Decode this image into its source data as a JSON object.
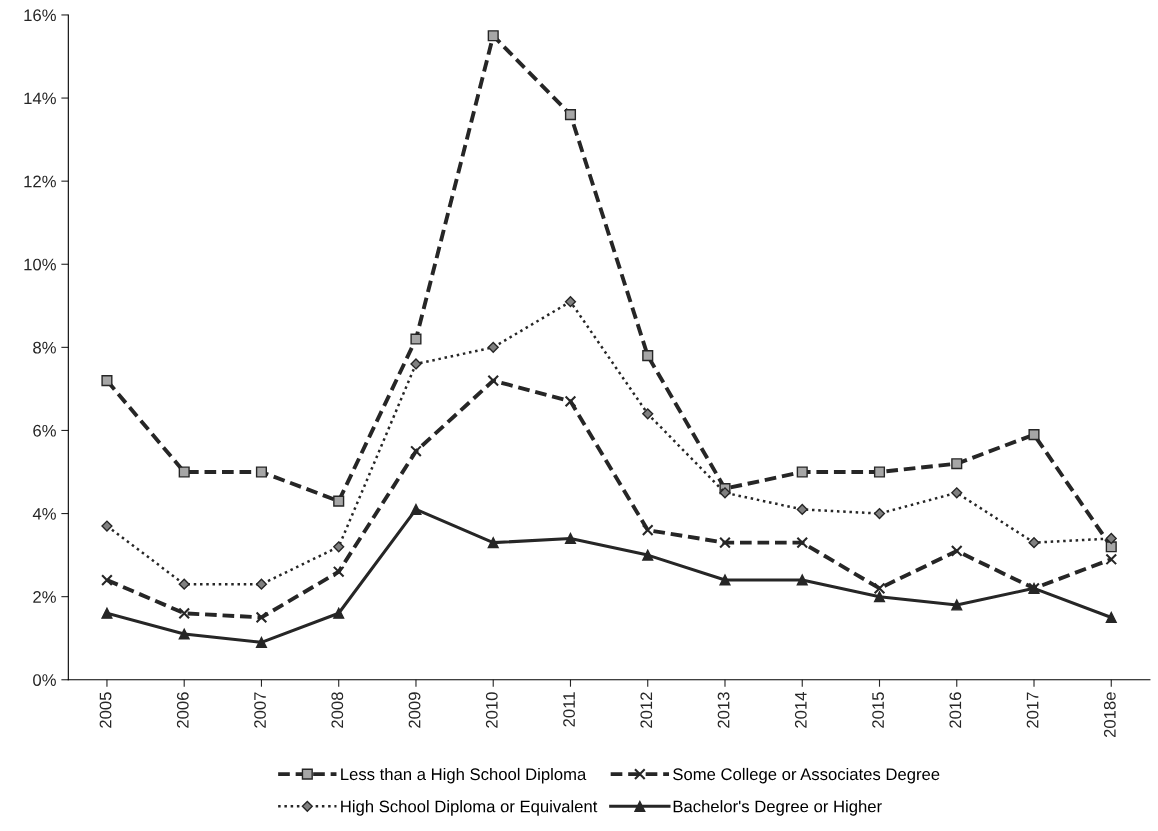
{
  "chart_data": {
    "type": "line",
    "categories": [
      "2005",
      "2006",
      "2007",
      "2008",
      "2009",
      "2010",
      "2011",
      "2012",
      "2013",
      "2014",
      "2015",
      "2016",
      "2017",
      "2018e"
    ],
    "series": [
      {
        "name": "Less than a High School Diploma",
        "color": "#262626",
        "marker": "square",
        "line_style": "dashed",
        "values": [
          7.2,
          5.0,
          5.0,
          4.3,
          8.2,
          15.5,
          13.6,
          7.8,
          4.6,
          5.0,
          5.0,
          5.2,
          5.9,
          3.2
        ]
      },
      {
        "name": "High School Diploma or Equivalent",
        "color": "#262626",
        "marker": "diamond",
        "line_style": "dotted",
        "values": [
          3.7,
          2.3,
          2.3,
          3.2,
          7.6,
          8.0,
          9.1,
          6.4,
          4.5,
          4.1,
          4.0,
          4.5,
          3.3,
          3.4
        ]
      },
      {
        "name": "Some College or Associates Degree",
        "color": "#262626",
        "marker": "cross",
        "line_style": "dashed",
        "values": [
          2.4,
          1.6,
          1.5,
          2.6,
          5.5,
          7.2,
          6.7,
          3.6,
          3.3,
          3.3,
          2.2,
          3.1,
          2.2,
          2.9
        ]
      },
      {
        "name": "Bachelor's Degree or Higher",
        "color": "#262626",
        "marker": "triangle",
        "line_style": "solid",
        "values": [
          1.6,
          1.1,
          0.9,
          1.6,
          4.1,
          3.3,
          3.4,
          3.0,
          2.4,
          2.4,
          2.0,
          1.8,
          2.2,
          1.5
        ]
      }
    ],
    "ylim": [
      0,
      16
    ],
    "yticks": [
      {
        "value": 0,
        "label": "0%"
      },
      {
        "value": 2,
        "label": "2%"
      },
      {
        "value": 4,
        "label": "4%"
      },
      {
        "value": 6,
        "label": "6%"
      },
      {
        "value": 8,
        "label": "8%"
      },
      {
        "value": 10,
        "label": "10%"
      },
      {
        "value": 12,
        "label": "12%"
      },
      {
        "value": 14,
        "label": "14%"
      },
      {
        "value": 16,
        "label": "16%"
      }
    ],
    "grid": false,
    "legend": "bottom"
  }
}
